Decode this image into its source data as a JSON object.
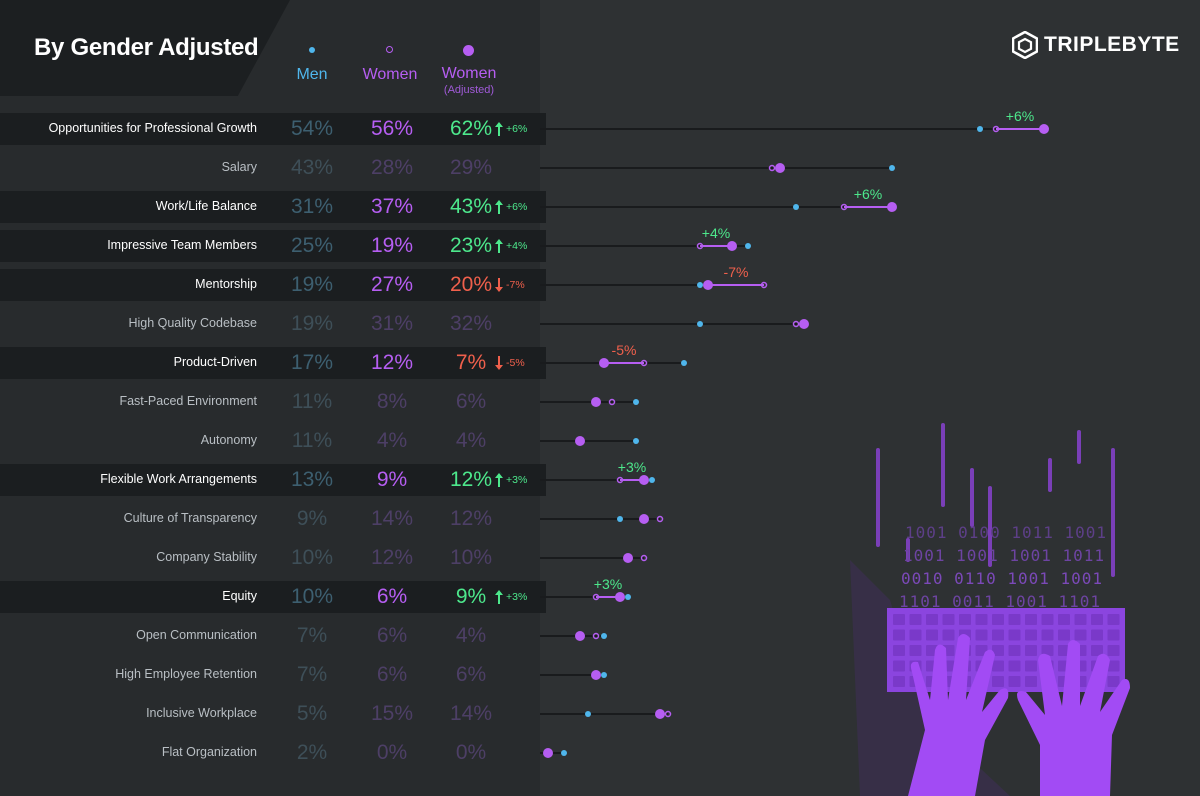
{
  "title": "By Gender Adjusted",
  "logo": {
    "text": "TRIPLEBYTE",
    "icon": "cube-icon"
  },
  "legend": {
    "men": "Men",
    "women": "Women",
    "women_adjusted": "Women",
    "adjusted_sub": "(Adjusted)"
  },
  "colors": {
    "men": "#4fb6ec",
    "women": "#b65ef2",
    "adjusted": "#b65ef2",
    "increase": "#4de88c",
    "decrease": "#f0604c",
    "highlight_label": "#ffffff",
    "muted_label": "#b9bfc4"
  },
  "chart_data": {
    "type": "dot-plot",
    "title": "By Gender Adjusted",
    "series": [
      {
        "name": "Men",
        "values": [
          54,
          43,
          31,
          25,
          19,
          19,
          17,
          11,
          11,
          13,
          9,
          10,
          10,
          7,
          7,
          5,
          2
        ]
      },
      {
        "name": "Women",
        "values": [
          56,
          28,
          37,
          19,
          27,
          31,
          12,
          8,
          4,
          9,
          14,
          12,
          6,
          6,
          6,
          15,
          0
        ]
      },
      {
        "name": "Women (Adjusted)",
        "values": [
          62,
          29,
          43,
          23,
          20,
          32,
          7,
          6,
          4,
          12,
          12,
          10,
          9,
          4,
          6,
          14,
          0
        ]
      }
    ],
    "rows": [
      {
        "label": "Opportunities for Professional Growth",
        "men": 54,
        "women": 56,
        "adjusted": 62,
        "men_text": "54%",
        "women_text": "56%",
        "adjusted_text": "62%",
        "highlight": true,
        "direction": "up",
        "change_text": "+6%"
      },
      {
        "label": "Salary",
        "men": 43,
        "women": 28,
        "adjusted": 29,
        "men_text": "43%",
        "women_text": "28%",
        "adjusted_text": "29%",
        "highlight": false,
        "direction": "",
        "change_text": ""
      },
      {
        "label": "Work/Life Balance",
        "men": 31,
        "women": 37,
        "adjusted": 43,
        "men_text": "31%",
        "women_text": "37%",
        "adjusted_text": "43%",
        "highlight": true,
        "direction": "up",
        "change_text": "+6%"
      },
      {
        "label": "Impressive Team Members",
        "men": 25,
        "women": 19,
        "adjusted": 23,
        "men_text": "25%",
        "women_text": "19%",
        "adjusted_text": "23%",
        "highlight": true,
        "direction": "up",
        "change_text": "+4%"
      },
      {
        "label": "Mentorship",
        "men": 19,
        "women": 27,
        "adjusted": 20,
        "men_text": "19%",
        "women_text": "27%",
        "adjusted_text": "20%",
        "highlight": true,
        "direction": "down",
        "change_text": "-7%"
      },
      {
        "label": "High Quality Codebase",
        "men": 19,
        "women": 31,
        "adjusted": 32,
        "men_text": "19%",
        "women_text": "31%",
        "adjusted_text": "32%",
        "highlight": false,
        "direction": "",
        "change_text": ""
      },
      {
        "label": "Product-Driven",
        "men": 17,
        "women": 12,
        "adjusted": 7,
        "men_text": "17%",
        "women_text": "12%",
        "adjusted_text": "7%",
        "highlight": true,
        "direction": "down",
        "change_text": "-5%"
      },
      {
        "label": "Fast-Paced Environment",
        "men": 11,
        "women": 8,
        "adjusted": 6,
        "men_text": "11%",
        "women_text": "8%",
        "adjusted_text": "6%",
        "highlight": false,
        "direction": "",
        "change_text": ""
      },
      {
        "label": "Autonomy",
        "men": 11,
        "women": 4,
        "adjusted": 4,
        "men_text": "11%",
        "women_text": "4%",
        "adjusted_text": "4%",
        "highlight": false,
        "direction": "",
        "change_text": ""
      },
      {
        "label": "Flexible Work Arrangements",
        "men": 13,
        "women": 9,
        "adjusted": 12,
        "men_text": "13%",
        "women_text": "9%",
        "adjusted_text": "12%",
        "highlight": true,
        "direction": "up",
        "change_text": "+3%"
      },
      {
        "label": "Culture of Transparency",
        "men": 9,
        "women": 14,
        "adjusted": 12,
        "men_text": "9%",
        "women_text": "14%",
        "adjusted_text": "12%",
        "highlight": false,
        "direction": "",
        "change_text": ""
      },
      {
        "label": "Company Stability",
        "men": 10,
        "women": 12,
        "adjusted": 10,
        "men_text": "10%",
        "women_text": "12%",
        "adjusted_text": "10%",
        "highlight": false,
        "direction": "",
        "change_text": ""
      },
      {
        "label": "Equity",
        "men": 10,
        "women": 6,
        "adjusted": 9,
        "men_text": "10%",
        "women_text": "6%",
        "adjusted_text": "9%",
        "highlight": true,
        "direction": "up",
        "change_text": "+3%"
      },
      {
        "label": "Open Communication",
        "men": 7,
        "women": 6,
        "adjusted": 4,
        "men_text": "7%",
        "women_text": "6%",
        "adjusted_text": "4%",
        "highlight": false,
        "direction": "",
        "change_text": ""
      },
      {
        "label": "High Employee Retention",
        "men": 7,
        "women": 6,
        "adjusted": 6,
        "men_text": "7%",
        "women_text": "6%",
        "adjusted_text": "6%",
        "highlight": false,
        "direction": "",
        "change_text": ""
      },
      {
        "label": "Inclusive Workplace",
        "men": 5,
        "women": 15,
        "adjusted": 14,
        "men_text": "5%",
        "women_text": "15%",
        "adjusted_text": "14%",
        "highlight": false,
        "direction": "",
        "change_text": ""
      },
      {
        "label": "Flat Organization",
        "men": 2,
        "women": 0,
        "adjusted": 0,
        "men_text": "2%",
        "women_text": "0%",
        "adjusted_text": "0%",
        "highlight": false,
        "direction": "",
        "change_text": ""
      }
    ],
    "xlim": [
      0,
      62
    ],
    "grid": false,
    "legend_position": "top"
  }
}
